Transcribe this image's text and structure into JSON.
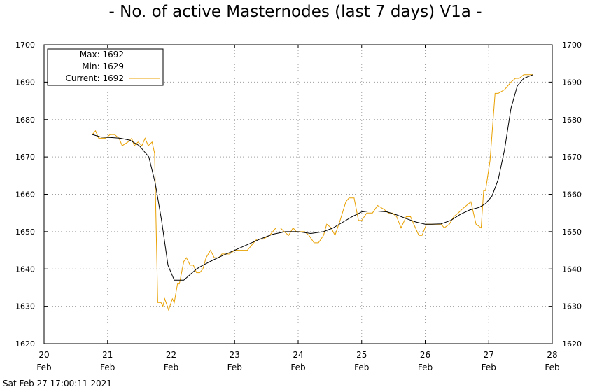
{
  "chart_data": {
    "type": "line",
    "title": "- No. of active Masternodes (last 7 days) V1a -",
    "x_unit": "days (February 2021)",
    "xlim": [
      20,
      28
    ],
    "ylim": [
      1620,
      1700
    ],
    "y_ticks": [
      1620,
      1630,
      1640,
      1650,
      1660,
      1670,
      1680,
      1690,
      1700
    ],
    "x_ticks": [
      {
        "value": 20,
        "day": "20",
        "month": "Feb"
      },
      {
        "value": 21,
        "day": "21",
        "month": "Feb"
      },
      {
        "value": 22,
        "day": "22",
        "month": "Feb"
      },
      {
        "value": 23,
        "day": "23",
        "month": "Feb"
      },
      {
        "value": 24,
        "day": "24",
        "month": "Feb"
      },
      {
        "value": 25,
        "day": "25",
        "month": "Feb"
      },
      {
        "value": 26,
        "day": "26",
        "month": "Feb"
      },
      {
        "value": 27,
        "day": "27",
        "month": "Feb"
      },
      {
        "value": 28,
        "day": "28",
        "month": "Feb"
      }
    ],
    "grid": true,
    "legend": {
      "placement": "top-left",
      "max_label": "Max: 1692",
      "min_label": "Min: 1629",
      "current_label": "Current: 1692"
    },
    "series": [
      {
        "key": "current",
        "color": "#e8a000",
        "x": [
          20.76,
          20.81,
          20.86,
          20.92,
          20.97,
          21.04,
          21.11,
          21.18,
          21.23,
          21.32,
          21.38,
          21.42,
          21.48,
          21.54,
          21.59,
          21.64,
          21.7,
          21.74,
          21.79,
          21.84,
          21.87,
          21.9,
          21.94,
          21.96,
          21.98,
          22.02,
          22.05,
          22.1,
          22.13,
          22.2,
          22.24,
          22.3,
          22.35,
          22.4,
          22.45,
          22.5,
          22.55,
          22.62,
          22.68,
          22.75,
          22.8,
          22.85,
          22.92,
          23.0,
          23.1,
          23.2,
          23.35,
          23.45,
          23.55,
          23.65,
          23.72,
          23.78,
          23.85,
          23.92,
          23.97,
          24.03,
          24.1,
          24.17,
          24.25,
          24.32,
          24.4,
          24.45,
          24.52,
          24.58,
          24.66,
          24.75,
          24.8,
          24.88,
          24.95,
          25.0,
          25.08,
          25.17,
          25.25,
          25.35,
          25.42,
          25.48,
          25.55,
          25.62,
          25.7,
          25.77,
          25.82,
          25.9,
          25.95,
          26.02,
          26.1,
          26.18,
          26.25,
          26.3,
          26.38,
          26.45,
          26.52,
          26.58,
          26.65,
          26.72,
          26.8,
          26.88,
          26.92,
          26.95,
          27.02,
          27.1,
          27.15,
          27.25,
          27.35,
          27.42,
          27.48,
          27.55,
          27.62,
          27.7
        ],
        "y": [
          1676,
          1677,
          1675,
          1675,
          1675,
          1676,
          1676,
          1675,
          1673,
          1674,
          1675,
          1673,
          1674,
          1673,
          1675,
          1673,
          1674,
          1671,
          1631,
          1631,
          1630,
          1632,
          1630,
          1629,
          1630,
          1632,
          1631,
          1636,
          1636,
          1642,
          1643,
          1641,
          1641,
          1639,
          1639,
          1640,
          1643,
          1645,
          1643,
          1643,
          1644,
          1644,
          1644,
          1645,
          1645,
          1645,
          1648,
          1648,
          1649,
          1651,
          1651,
          1650,
          1649,
          1651,
          1650,
          1650,
          1650,
          1649,
          1647,
          1647,
          1649,
          1652,
          1651,
          1649,
          1653,
          1658,
          1659,
          1659,
          1653,
          1653,
          1655,
          1655,
          1657,
          1656,
          1655,
          1655,
          1654,
          1651,
          1654,
          1654,
          1652,
          1649,
          1649,
          1652,
          1652,
          1652,
          1652,
          1651,
          1652,
          1654,
          1655,
          1656,
          1657,
          1658,
          1652,
          1651,
          1661,
          1661,
          1669,
          1687,
          1687,
          1688,
          1690,
          1691,
          1691,
          1692,
          1692,
          1692
        ]
      },
      {
        "key": "smoothed",
        "color": "#000000",
        "x": [
          20.76,
          20.9,
          21.05,
          21.2,
          21.35,
          21.5,
          21.65,
          21.75,
          21.85,
          21.95,
          22.05,
          22.2,
          22.3,
          22.4,
          22.5,
          22.65,
          22.8,
          23.0,
          23.2,
          23.4,
          23.6,
          23.8,
          24.0,
          24.2,
          24.4,
          24.55,
          24.7,
          24.85,
          25.0,
          25.1,
          25.25,
          25.4,
          25.55,
          25.7,
          25.85,
          26.0,
          26.1,
          26.25,
          26.4,
          26.55,
          26.7,
          26.85,
          26.95,
          27.05,
          27.15,
          27.25,
          27.35,
          27.45,
          27.55,
          27.7
        ],
        "y": [
          1676,
          1675.3,
          1675.2,
          1675,
          1674.5,
          1673,
          1670,
          1663,
          1653,
          1641,
          1637,
          1637,
          1638.5,
          1640,
          1641,
          1642.3,
          1643.5,
          1645,
          1646.5,
          1648,
          1649.3,
          1650,
          1650,
          1649.5,
          1650,
          1651,
          1652.5,
          1654,
          1655.3,
          1655.5,
          1655.5,
          1655.3,
          1654.5,
          1653.5,
          1652.6,
          1652,
          1652,
          1652.1,
          1653,
          1654.6,
          1655.8,
          1656.5,
          1657.5,
          1659.5,
          1664,
          1672,
          1683,
          1689,
          1691,
          1692
        ]
      }
    ]
  },
  "footer": {
    "timestamp": "Sat Feb 27 17:00:11 2021"
  }
}
